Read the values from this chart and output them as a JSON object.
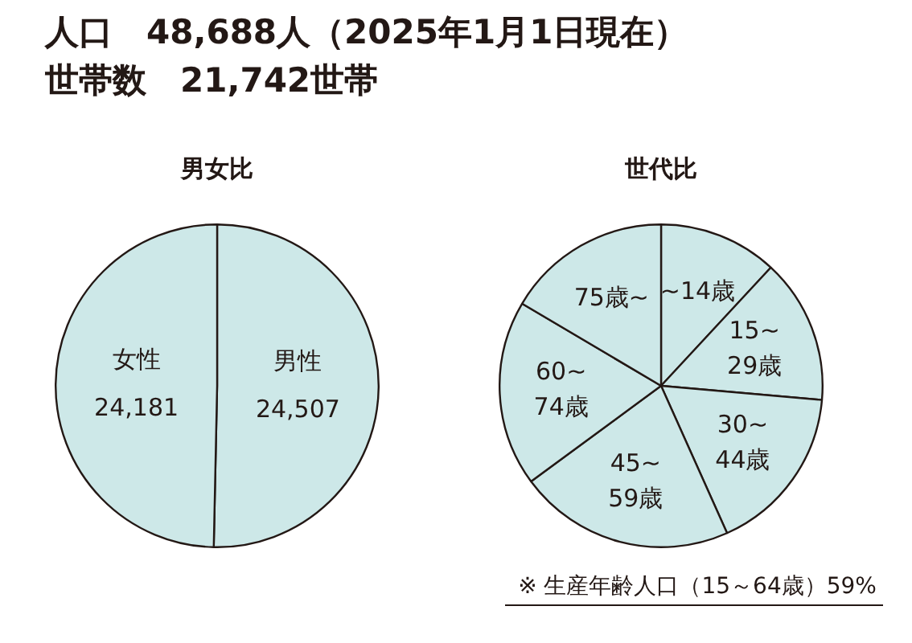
{
  "chart_data": [
    {
      "type": "pie",
      "title": "男女比",
      "categories": [
        "男性",
        "女性"
      ],
      "values": [
        24507,
        24181
      ],
      "value_labels": [
        "24,507",
        "24,181"
      ],
      "colors": [
        "#cde8e8",
        "#cde8e8"
      ],
      "legend": false,
      "annotations": [
        "人口　48,688人（2025年1月1日現在）",
        "世帯数　21,742世帯"
      ]
    },
    {
      "type": "pie",
      "title": "世代比",
      "categories": [
        "~14歳",
        "15~29歳",
        "30~44歳",
        "45~59歳",
        "60~74歳",
        "75歳~"
      ],
      "values": [
        11.9,
        14.5,
        16.9,
        21.6,
        18.6,
        16.5
      ],
      "colors": [
        "#cde8e8",
        "#cde8e8",
        "#cde8e8",
        "#cde8e8",
        "#cde8e8",
        "#cde8e8"
      ],
      "legend": false,
      "annotations": [
        "※ 生産年齢人口（15～64歳）59%"
      ]
    }
  ]
}
